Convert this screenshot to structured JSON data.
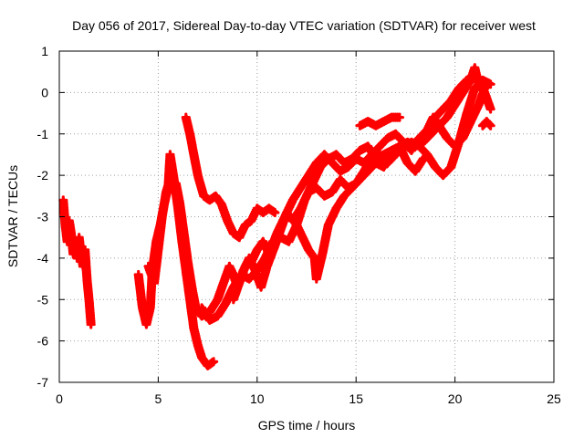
{
  "chart_data": {
    "type": "scatter",
    "title": "Day 056 of 2017, Sidereal Day-to-day VTEC variation (SDTVAR) for receiver west",
    "xlabel": "GPS time / hours",
    "ylabel": "SDTVAR / TECUs",
    "xlim": [
      0,
      25
    ],
    "ylim": [
      -7,
      1
    ],
    "x_ticks": [
      "0",
      "5",
      "10",
      "15",
      "20",
      "25"
    ],
    "y_ticks": [
      "1",
      "0",
      "-1",
      "-2",
      "-3",
      "-4",
      "-5",
      "-6",
      "-7"
    ],
    "grid": true,
    "marker": "plus",
    "color": "#ff0000",
    "series": [
      {
        "values": [
          [
            0.2,
            -2.6
          ],
          [
            0.3,
            -3.2
          ],
          [
            0.4,
            -3.6
          ],
          [
            0.5,
            -3.1
          ],
          [
            0.6,
            -3.4
          ],
          [
            0.7,
            -3.9
          ],
          [
            0.8,
            -3.6
          ],
          [
            0.9,
            -4.0
          ],
          [
            1.0,
            -3.5
          ],
          [
            1.1,
            -3.9
          ],
          [
            1.2,
            -4.2
          ],
          [
            1.3,
            -3.8
          ],
          [
            1.4,
            -4.5
          ],
          [
            1.5,
            -5.0
          ],
          [
            1.6,
            -5.6
          ]
        ]
      },
      {
        "values": [
          [
            4.0,
            -4.4
          ],
          [
            4.2,
            -5.2
          ],
          [
            4.4,
            -5.6
          ],
          [
            4.6,
            -5.2
          ],
          [
            4.7,
            -4.3
          ],
          [
            4.9,
            -3.6
          ],
          [
            5.1,
            -3.2
          ],
          [
            5.3,
            -2.7
          ],
          [
            5.5,
            -2.3
          ],
          [
            5.6,
            -1.5
          ],
          [
            5.8,
            -2.1
          ],
          [
            6.0,
            -2.8
          ],
          [
            6.2,
            -3.6
          ],
          [
            6.4,
            -4.3
          ],
          [
            6.6,
            -5.0
          ],
          [
            6.8,
            -5.7
          ],
          [
            7.0,
            -6.1
          ],
          [
            7.2,
            -6.4
          ],
          [
            7.5,
            -6.6
          ],
          [
            7.8,
            -6.5
          ]
        ]
      },
      {
        "values": [
          [
            4.5,
            -4.2
          ],
          [
            4.8,
            -4.6
          ],
          [
            5.0,
            -3.8
          ],
          [
            5.2,
            -3.0
          ],
          [
            5.4,
            -2.4
          ],
          [
            5.6,
            -2.1
          ],
          [
            5.9,
            -2.2
          ],
          [
            6.1,
            -2.7
          ],
          [
            6.3,
            -3.4
          ],
          [
            6.5,
            -4.1
          ],
          [
            6.7,
            -4.7
          ],
          [
            6.9,
            -5.2
          ],
          [
            7.2,
            -5.4
          ],
          [
            7.6,
            -5.3
          ],
          [
            8.0,
            -5.0
          ],
          [
            8.3,
            -4.6
          ],
          [
            8.6,
            -4.2
          ],
          [
            8.8,
            -4.4
          ],
          [
            9.0,
            -4.7
          ],
          [
            9.3,
            -4.3
          ],
          [
            9.6,
            -4.0
          ],
          [
            9.9,
            -4.3
          ],
          [
            10.2,
            -4.7
          ],
          [
            10.5,
            -4.2
          ],
          [
            10.9,
            -3.7
          ],
          [
            11.2,
            -3.3
          ],
          [
            11.5,
            -2.9
          ],
          [
            11.8,
            -3.1
          ],
          [
            12.2,
            -2.8
          ],
          [
            12.6,
            -2.4
          ],
          [
            13.0,
            -2.3
          ],
          [
            13.4,
            -2.5
          ],
          [
            13.8,
            -2.4
          ],
          [
            14.2,
            -2.1
          ],
          [
            14.6,
            -2.3
          ],
          [
            15.0,
            -2.2
          ],
          [
            15.4,
            -1.9
          ],
          [
            15.8,
            -1.6
          ],
          [
            16.2,
            -1.5
          ],
          [
            16.6,
            -1.7
          ],
          [
            17.0,
            -1.5
          ],
          [
            17.4,
            -1.3
          ],
          [
            17.8,
            -1.2
          ],
          [
            18.2,
            -1.3
          ],
          [
            18.6,
            -1.5
          ],
          [
            19.0,
            -1.8
          ],
          [
            19.4,
            -2.0
          ],
          [
            19.8,
            -1.8
          ],
          [
            20.2,
            -1.2
          ],
          [
            20.6,
            -0.5
          ],
          [
            21.0,
            0.1
          ],
          [
            21.4,
            0.3
          ],
          [
            21.8,
            0.2
          ]
        ]
      },
      {
        "values": [
          [
            6.4,
            -0.6
          ],
          [
            6.6,
            -1.0
          ],
          [
            6.8,
            -1.5
          ],
          [
            7.0,
            -2.0
          ],
          [
            7.3,
            -2.5
          ],
          [
            7.6,
            -2.6
          ],
          [
            7.9,
            -2.5
          ],
          [
            8.2,
            -2.7
          ],
          [
            8.5,
            -3.1
          ],
          [
            8.8,
            -3.4
          ],
          [
            9.1,
            -3.5
          ],
          [
            9.4,
            -3.2
          ],
          [
            9.7,
            -3.1
          ],
          [
            10.0,
            -2.8
          ],
          [
            10.3,
            -2.9
          ],
          [
            10.6,
            -2.8
          ],
          [
            10.9,
            -2.9
          ]
        ]
      },
      {
        "values": [
          [
            7.2,
            -5.2
          ],
          [
            7.6,
            -5.5
          ],
          [
            8.0,
            -5.4
          ],
          [
            8.4,
            -5.1
          ],
          [
            8.8,
            -4.7
          ],
          [
            9.2,
            -4.4
          ],
          [
            9.6,
            -4.5
          ],
          [
            10.0,
            -4.3
          ],
          [
            10.4,
            -4.0
          ],
          [
            10.8,
            -3.6
          ],
          [
            11.2,
            -3.5
          ],
          [
            11.6,
            -3.6
          ],
          [
            12.0,
            -3.2
          ],
          [
            12.4,
            -2.6
          ],
          [
            12.8,
            -2.2
          ],
          [
            13.2,
            -1.8
          ],
          [
            13.6,
            -1.6
          ],
          [
            14.0,
            -1.5
          ],
          [
            14.4,
            -1.7
          ],
          [
            14.8,
            -1.6
          ],
          [
            15.2,
            -1.4
          ],
          [
            15.6,
            -1.3
          ],
          [
            16.0,
            -1.6
          ],
          [
            16.4,
            -1.5
          ],
          [
            16.8,
            -1.4
          ],
          [
            17.2,
            -1.3
          ],
          [
            17.6,
            -1.2
          ],
          [
            18.0,
            -1.3
          ],
          [
            18.4,
            -1.2
          ],
          [
            18.8,
            -1.0
          ],
          [
            19.2,
            -0.8
          ],
          [
            19.6,
            -0.6
          ],
          [
            20.0,
            -0.3
          ],
          [
            20.4,
            0.0
          ],
          [
            20.8,
            0.3
          ],
          [
            21.0,
            0.6
          ],
          [
            21.2,
            0.2
          ],
          [
            21.5,
            0.0
          ],
          [
            21.8,
            -0.4
          ]
        ]
      },
      {
        "values": [
          [
            8.8,
            -5.0
          ],
          [
            9.1,
            -4.6
          ],
          [
            9.4,
            -4.2
          ],
          [
            9.7,
            -4.1
          ],
          [
            10.0,
            -3.8
          ],
          [
            10.3,
            -3.6
          ],
          [
            10.6,
            -3.9
          ],
          [
            11.0,
            -3.4
          ],
          [
            11.4,
            -3.0
          ],
          [
            11.8,
            -2.6
          ],
          [
            12.2,
            -2.3
          ],
          [
            12.6,
            -2.0
          ],
          [
            13.0,
            -1.7
          ],
          [
            13.4,
            -1.5
          ],
          [
            13.8,
            -1.7
          ],
          [
            14.2,
            -1.9
          ],
          [
            14.6,
            -1.8
          ],
          [
            15.0,
            -1.6
          ],
          [
            15.4,
            -1.7
          ],
          [
            15.8,
            -1.5
          ],
          [
            16.2,
            -1.3
          ],
          [
            16.6,
            -1.1
          ],
          [
            17.0,
            -1.0
          ],
          [
            17.4,
            -1.2
          ],
          [
            17.8,
            -1.4
          ],
          [
            18.2,
            -1.1
          ],
          [
            18.6,
            -0.9
          ],
          [
            19.0,
            -0.6
          ],
          [
            19.4,
            -0.4
          ],
          [
            19.8,
            -0.2
          ],
          [
            20.2,
            0.1
          ],
          [
            20.6,
            0.3
          ],
          [
            21.0,
            0.4
          ],
          [
            21.4,
            0.2
          ],
          [
            21.7,
            0.2
          ]
        ]
      },
      {
        "values": [
          [
            12.0,
            -3.2
          ],
          [
            12.3,
            -3.5
          ],
          [
            12.6,
            -3.8
          ],
          [
            12.9,
            -4.0
          ],
          [
            13.0,
            -4.5
          ],
          [
            13.3,
            -3.9
          ],
          [
            13.6,
            -3.2
          ],
          [
            14.0,
            -2.8
          ],
          [
            14.4,
            -2.5
          ],
          [
            14.8,
            -2.3
          ],
          [
            15.2,
            -2.1
          ],
          [
            15.6,
            -1.9
          ],
          [
            16.0,
            -1.7
          ],
          [
            16.4,
            -1.8
          ],
          [
            16.8,
            -1.5
          ],
          [
            17.2,
            -1.3
          ],
          [
            17.6,
            -1.7
          ],
          [
            18.0,
            -1.9
          ],
          [
            18.4,
            -1.6
          ]
        ]
      },
      {
        "values": [
          [
            15.2,
            -0.8
          ],
          [
            15.6,
            -0.7
          ],
          [
            16.0,
            -0.8
          ],
          [
            16.4,
            -0.7
          ],
          [
            16.8,
            -0.6
          ],
          [
            17.2,
            -0.6
          ]
        ]
      },
      {
        "values": [
          [
            17.8,
            -1.3
          ],
          [
            18.2,
            -1.1
          ],
          [
            18.6,
            -0.9
          ],
          [
            18.9,
            -0.6
          ],
          [
            19.2,
            -0.8
          ],
          [
            19.6,
            -1.1
          ],
          [
            20.0,
            -1.3
          ],
          [
            20.4,
            -1.1
          ],
          [
            20.8,
            -0.7
          ],
          [
            21.2,
            -0.3
          ],
          [
            21.5,
            0.1
          ]
        ]
      },
      {
        "values": [
          [
            21.4,
            -0.8
          ],
          [
            21.6,
            -0.7
          ],
          [
            21.8,
            -0.8
          ]
        ]
      }
    ]
  }
}
